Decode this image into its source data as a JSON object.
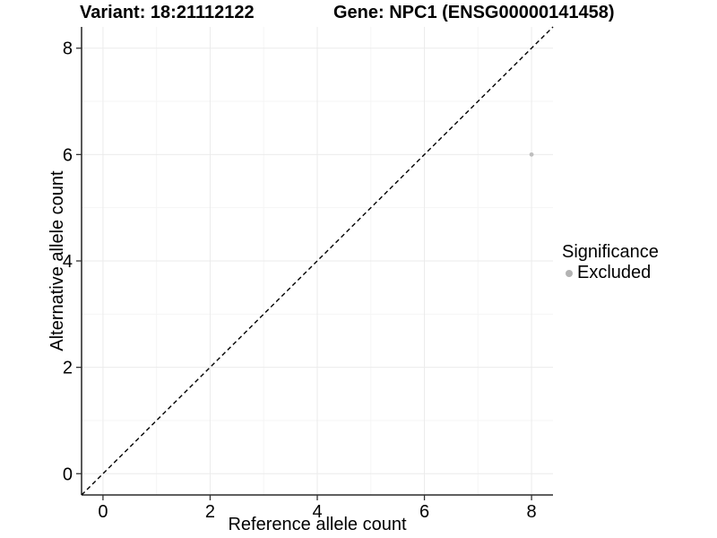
{
  "chart_data": {
    "type": "scatter",
    "titles": {
      "left": "Variant: 18:21112122",
      "right": "Gene: NPC1 (ENSG00000141458)"
    },
    "xlabel": "Reference allele count",
    "ylabel": "Alternative allele count",
    "xlim": [
      -0.4,
      8.4
    ],
    "ylim": [
      -0.4,
      8.4
    ],
    "x_ticks": [
      0,
      2,
      4,
      6,
      8
    ],
    "y_ticks": [
      0,
      2,
      4,
      6,
      8
    ],
    "x_minor_ticks": [
      1,
      3,
      5,
      7
    ],
    "y_minor_ticks": [
      1,
      3,
      5,
      7
    ],
    "grid": "major+minor",
    "reference_line": {
      "type": "identity y=x",
      "style": "dashed",
      "color": "#000000"
    },
    "series": [
      {
        "name": "Excluded",
        "color": "#bebebe",
        "points": [
          {
            "x": 8,
            "y": 6
          }
        ]
      }
    ],
    "legend": {
      "title": "Significance",
      "position": "right",
      "items": [
        {
          "label": "Excluded",
          "color": "#b3b3b3"
        }
      ]
    },
    "colors": {
      "background": "#ffffff",
      "axis": "#000000",
      "tick": "#333333",
      "grid_major": "#ebebeb",
      "grid_minor": "#f5f5f5",
      "point": "#bebebe"
    }
  }
}
